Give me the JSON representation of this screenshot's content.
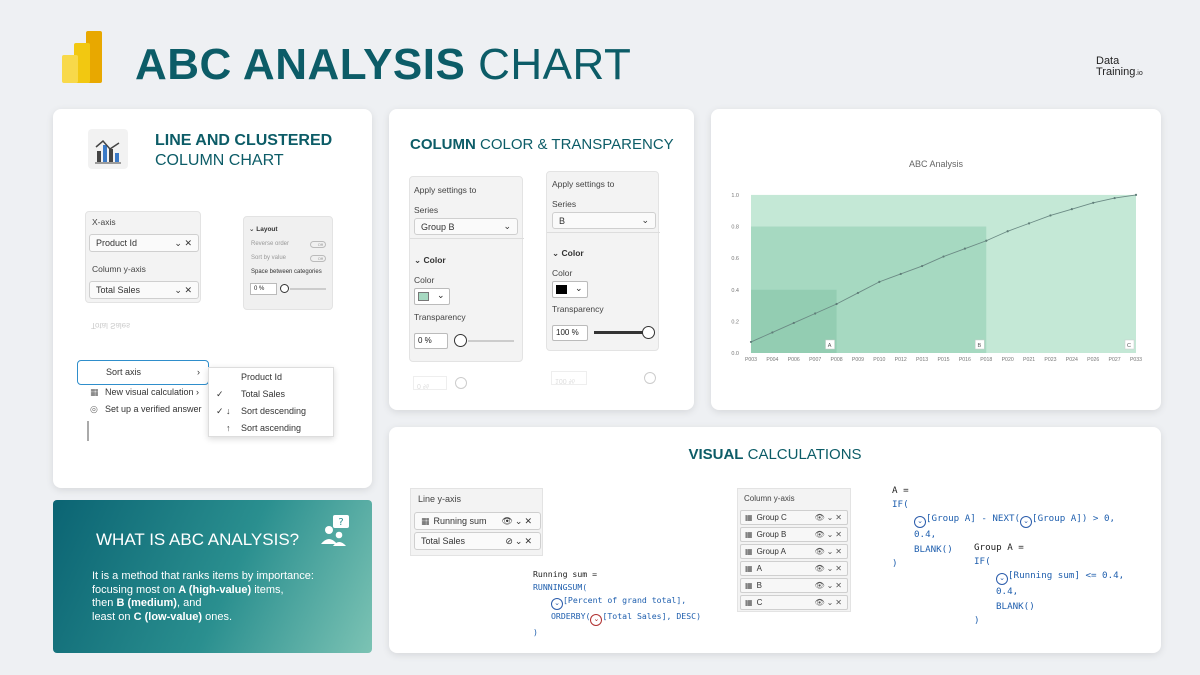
{
  "header": {
    "title_bold": "ABC ANALYSIS",
    "title_thin": "CHART",
    "brand_line1": "Data",
    "brand_line2": "Training",
    "brand_suffix": ".io"
  },
  "card1": {
    "title_bold": "LINE AND CLUSTERED",
    "title_thin": "COLUMN CHART",
    "xaxis_label": "X-axis",
    "xaxis_value": "Product Id",
    "colaxis_label": "Column y-axis",
    "colaxis_value": "Total Sales",
    "ghost_text": "Total Sales",
    "layout_title": "Layout",
    "layout_reverse": "Reverse order",
    "layout_sort": "Sort by value",
    "layout_space": "Space between categories",
    "layout_pct": "0 %",
    "off1": "Off",
    "off2": "Off",
    "menu1": [
      "Sort axis",
      "New visual calculation",
      "Set up a verified answer"
    ],
    "menu2": [
      "Product Id",
      "Total Sales",
      "Sort descending",
      "Sort ascending"
    ]
  },
  "card2": {
    "title_bold": "COLUMN",
    "title_thin": "COLOR & TRANSPARENCY",
    "left": {
      "apply": "Apply settings to",
      "series_label": "Series",
      "series_value": "Group B",
      "color_heading": "Color",
      "color_label": "Color",
      "transp_label": "Transparency",
      "transp_value": "0 %",
      "ghost": "0 %"
    },
    "right": {
      "apply": "Apply settings to",
      "series_label": "Series",
      "series_value": "B",
      "color_heading": "Color",
      "color_label": "Color",
      "transp_label": "Transparency",
      "transp_value": "100 %",
      "ghost": "100 %"
    }
  },
  "chart_data": {
    "type": "area",
    "title": "ABC Analysis",
    "categories": [
      "P003",
      "P004",
      "P006",
      "P007",
      "P008",
      "P009",
      "P010",
      "P012",
      "P013",
      "P015",
      "P016",
      "P018",
      "P020",
      "P021",
      "P023",
      "P024",
      "P026",
      "P027",
      "P033"
    ],
    "yticks": [
      "0.0",
      "0.2",
      "0.4",
      "0.6",
      "0.8",
      "1.0"
    ],
    "ylim": [
      0,
      1.05
    ],
    "series": [
      {
        "name": "Running sum",
        "values": [
          0.07,
          0.13,
          0.19,
          0.25,
          0.31,
          0.38,
          0.45,
          0.5,
          0.55,
          0.61,
          0.66,
          0.71,
          0.77,
          0.82,
          0.87,
          0.91,
          0.95,
          0.98,
          1.0
        ]
      }
    ],
    "groups": [
      {
        "name": "A",
        "end_index": 4,
        "top": 0.4,
        "color": "#93cdb2"
      },
      {
        "name": "B",
        "end_index": 11,
        "top": 0.8,
        "color": "#a6d9c1"
      },
      {
        "name": "C",
        "end_index": 18,
        "top": 1.0,
        "color": "#c4e8d6"
      }
    ],
    "group_labels": [
      "A",
      "B",
      "C"
    ]
  },
  "card4": {
    "title_bold": "VISUAL",
    "title_thin": "CALCULATIONS",
    "line_axis": "Line y-axis",
    "running_sum": "Running sum",
    "total_sales": "Total Sales",
    "col_axis": "Column y-axis",
    "col_items": [
      "Group C",
      "Group B",
      "Group A",
      "A",
      "B",
      "C"
    ],
    "code_running": [
      "Running sum =",
      "RUNNINGSUM(",
      "[Percent of grand total],",
      "ORDERBY(",
      "[Total Sales], DESC)",
      ")"
    ],
    "code_a": [
      "A =",
      "IF(",
      "[Group A] - NEXT(",
      "[Group A]) > 0,",
      "0.4,",
      "BLANK()",
      ")"
    ],
    "code_ga": [
      "Group A =",
      "IF(",
      "[Running sum] <= 0.4,",
      "0.4,",
      "BLANK()",
      ")"
    ]
  },
  "card5": {
    "title": "WHAT IS ABC ANALYSIS?",
    "p1": "It is a method that ranks items by importance:",
    "p2a": "focusing most on ",
    "p2b": "A (high-value)",
    "p2c": " items,",
    "p3a": "then ",
    "p3b": "B (medium)",
    "p3c": ", and",
    "p4a": "least on ",
    "p4b": "C (low-value)",
    "p4c": " ones."
  }
}
